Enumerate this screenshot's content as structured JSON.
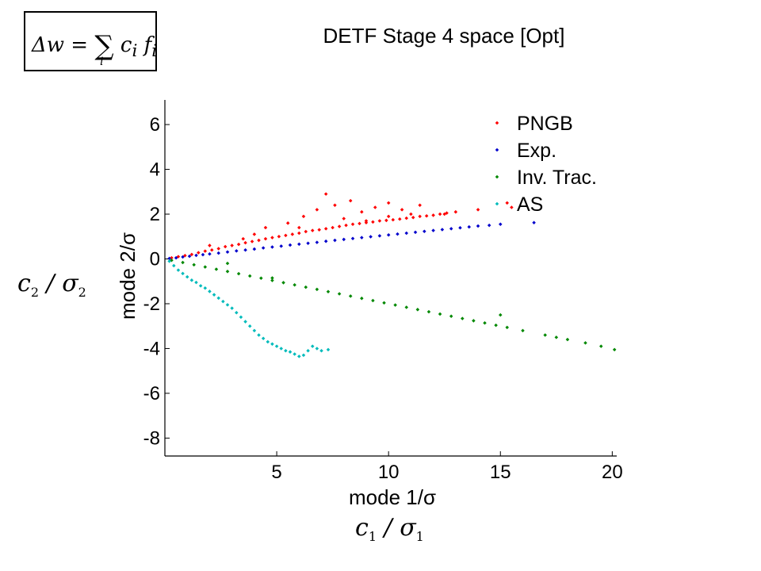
{
  "slide": {
    "title": "DETF Stage 4 space [Opt]",
    "formula": {
      "lhs": "Δw",
      "eq": "=",
      "sum": "∑",
      "term": "c",
      "term_sub": "i",
      "vec": "f",
      "vec_sub": "i",
      "sum_index": "i"
    },
    "y_side_label": {
      "num": "c",
      "num_sub": "2",
      "sep": " / ",
      "den": "σ",
      "den_sub": "2"
    },
    "x_side_label": {
      "num": "c",
      "num_sub": "1",
      "sep": " / ",
      "den": "σ",
      "den_sub": "1"
    }
  },
  "chart_data": {
    "type": "scatter",
    "title": "",
    "xlabel": "mode 1/σ",
    "ylabel": "mode 2/σ",
    "xlim": [
      0,
      20.2
    ],
    "ylim": [
      -8.8,
      7.1
    ],
    "xticks": [
      5,
      10,
      15,
      20
    ],
    "yticks": [
      6,
      4,
      2,
      0,
      -2,
      -4,
      -6,
      -8
    ],
    "grid": false,
    "legend_position": "top-right",
    "series": [
      {
        "name": "PNGB",
        "color": "#ff0000",
        "x": [
          0.3,
          0.6,
          0.9,
          1.2,
          1.5,
          1.8,
          2.1,
          2.4,
          2.7,
          3.0,
          3.3,
          3.6,
          3.9,
          4.2,
          4.5,
          4.8,
          5.1,
          5.4,
          5.7,
          6.0,
          6.3,
          6.6,
          6.9,
          7.2,
          7.5,
          7.8,
          8.1,
          8.4,
          8.7,
          9.0,
          9.3,
          9.6,
          9.9,
          10.2,
          10.5,
          10.8,
          11.1,
          11.4,
          11.7,
          12.0,
          12.3,
          12.6,
          13.0,
          14.0,
          15.3,
          2.0,
          3.5,
          4.5,
          5.5,
          6.2,
          6.8,
          7.2,
          7.6,
          8.3,
          8.8,
          9.4,
          10.0,
          10.6,
          11.4,
          12.5,
          15.5,
          4.0,
          6.0,
          8.0,
          9.0,
          10.0,
          11.0
        ],
        "y": [
          0.05,
          0.1,
          0.15,
          0.2,
          0.28,
          0.35,
          0.4,
          0.46,
          0.55,
          0.6,
          0.65,
          0.72,
          0.78,
          0.83,
          0.9,
          0.95,
          1.0,
          1.05,
          1.1,
          1.15,
          1.22,
          1.27,
          1.3,
          1.35,
          1.4,
          1.45,
          1.5,
          1.55,
          1.58,
          1.62,
          1.65,
          1.7,
          1.72,
          1.75,
          1.78,
          1.82,
          1.85,
          1.9,
          1.92,
          1.95,
          2.0,
          2.05,
          2.1,
          2.2,
          2.5,
          0.6,
          0.9,
          1.4,
          1.6,
          1.9,
          2.2,
          2.9,
          2.4,
          2.6,
          2.1,
          2.3,
          2.5,
          2.2,
          2.4,
          2.0,
          2.3,
          1.1,
          1.4,
          1.8,
          1.7,
          1.9,
          2.0
        ]
      },
      {
        "name": "Exp.",
        "color": "#0000cc",
        "x": [
          0.2,
          0.5,
          0.8,
          1.1,
          1.4,
          1.7,
          2.0,
          2.4,
          2.8,
          3.2,
          3.6,
          4.0,
          4.4,
          4.8,
          5.2,
          5.6,
          6.0,
          6.4,
          6.8,
          7.2,
          7.6,
          8.0,
          8.4,
          8.8,
          9.2,
          9.6,
          10.0,
          10.4,
          10.8,
          11.2,
          11.6,
          12.0,
          12.4,
          12.8,
          13.2,
          13.6,
          14.0,
          14.5,
          15.0,
          16.5
        ],
        "y": [
          0.02,
          0.05,
          0.09,
          0.12,
          0.16,
          0.19,
          0.22,
          0.26,
          0.31,
          0.36,
          0.4,
          0.44,
          0.49,
          0.53,
          0.57,
          0.62,
          0.66,
          0.7,
          0.74,
          0.79,
          0.83,
          0.87,
          0.91,
          0.95,
          0.99,
          1.03,
          1.07,
          1.11,
          1.15,
          1.19,
          1.23,
          1.27,
          1.31,
          1.35,
          1.39,
          1.43,
          1.47,
          1.5,
          1.55,
          1.62
        ]
      },
      {
        "name": "Inv. Trac.",
        "color": "#008800",
        "x": [
          0.3,
          0.8,
          1.3,
          1.8,
          2.3,
          2.8,
          3.3,
          3.8,
          4.3,
          4.8,
          5.3,
          5.8,
          6.3,
          6.8,
          7.3,
          7.8,
          8.3,
          8.8,
          9.3,
          9.8,
          10.3,
          10.8,
          11.3,
          11.8,
          12.3,
          12.8,
          13.3,
          13.8,
          14.3,
          14.8,
          15.3,
          16.0,
          17.0,
          17.5,
          18.0,
          18.8,
          19.5,
          20.1,
          2.8,
          4.8,
          15.0
        ],
        "y": [
          -0.06,
          -0.16,
          -0.26,
          -0.36,
          -0.46,
          -0.56,
          -0.66,
          -0.76,
          -0.86,
          -0.96,
          -1.06,
          -1.16,
          -1.26,
          -1.36,
          -1.46,
          -1.56,
          -1.66,
          -1.76,
          -1.86,
          -1.96,
          -2.06,
          -2.16,
          -2.26,
          -2.36,
          -2.46,
          -2.56,
          -2.66,
          -2.76,
          -2.86,
          -2.96,
          -3.06,
          -3.2,
          -3.4,
          -3.5,
          -3.6,
          -3.75,
          -3.9,
          -4.05,
          -0.2,
          -0.85,
          -2.5
        ]
      },
      {
        "name": "AS",
        "color": "#00bbbb",
        "x": [
          0.2,
          0.4,
          0.6,
          0.8,
          1.0,
          1.2,
          1.4,
          1.6,
          1.8,
          2.0,
          2.2,
          2.4,
          2.6,
          2.8,
          3.0,
          3.2,
          3.4,
          3.6,
          3.8,
          4.0,
          4.2,
          4.4,
          4.6,
          4.8,
          5.0,
          5.2,
          5.4,
          5.6,
          5.8,
          6.0,
          6.2,
          6.4,
          6.6,
          6.8,
          7.0,
          7.3
        ],
        "y": [
          -0.1,
          -0.3,
          -0.5,
          -0.65,
          -0.8,
          -0.95,
          -1.05,
          -1.2,
          -1.3,
          -1.45,
          -1.6,
          -1.75,
          -1.9,
          -2.05,
          -2.2,
          -2.4,
          -2.6,
          -2.8,
          -3.0,
          -3.2,
          -3.4,
          -3.55,
          -3.7,
          -3.8,
          -3.9,
          -4.0,
          -4.1,
          -4.15,
          -4.25,
          -4.35,
          -4.3,
          -4.1,
          -3.9,
          -4.0,
          -4.1,
          -4.05
        ]
      }
    ]
  }
}
